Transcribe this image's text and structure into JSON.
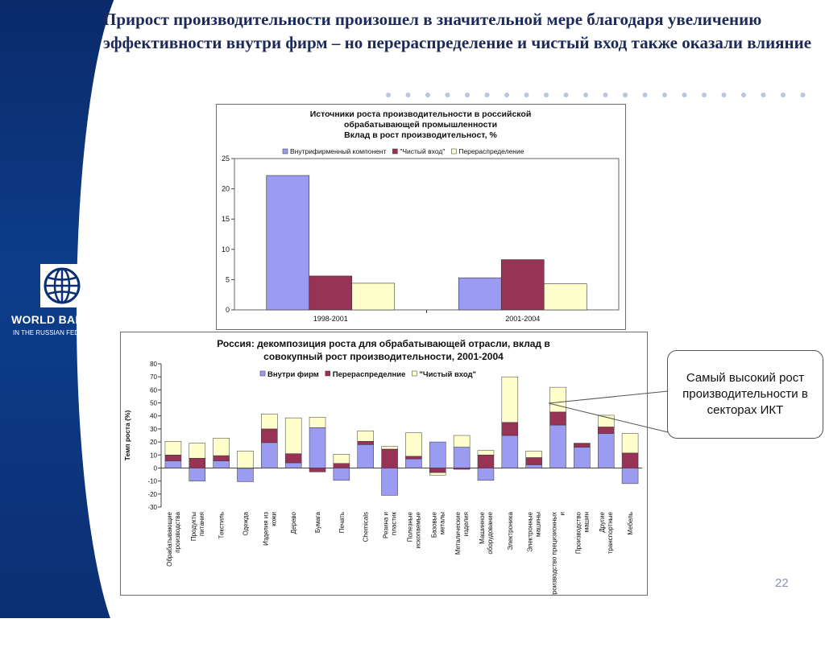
{
  "slide": {
    "headline": "Прирост производительности произошел в значительной мере благодаря увеличению эффективности внутри фирм – но перераспределение и чистый вход также оказали влияние",
    "page_number": "22"
  },
  "logo": {
    "name": "WORLD BANK",
    "subtitle": "IN THE RUSSIAN FEDERATION",
    "icon": "globe-icon"
  },
  "callout": {
    "text": "Самый высокий рост производительности в секторах ИКТ"
  },
  "colors": {
    "within": "#9b9bf2",
    "net_entry_top": "#993355",
    "realloc_top": "#ffffcc",
    "sidebar": "#0d3d8a",
    "headline": "#1b2a5a"
  },
  "chart_data": [
    {
      "type": "bar",
      "title_lines": [
        "Источники роста производительности в российской",
        "обрабатывающей промышленности",
        "Вклад в рост производительност, %"
      ],
      "categories": [
        "1998-2001",
        "2001-2004"
      ],
      "series": [
        {
          "name": "Внутрифирменный компонент",
          "color": "#9b9bf2",
          "values": [
            22.2,
            5.3
          ]
        },
        {
          "name": "\"Чистый вход\"",
          "color": "#993355",
          "values": [
            5.6,
            8.3
          ]
        },
        {
          "name": "Перераспределение",
          "color": "#ffffcc",
          "values": [
            4.4,
            4.3
          ]
        }
      ],
      "ylim": [
        0,
        25
      ],
      "yticks": [
        0,
        5,
        10,
        15,
        20,
        25
      ],
      "grid": false,
      "legend": "top"
    },
    {
      "type": "bar",
      "stacked": true,
      "title_lines": [
        "Россия: декомпозиция роста для обрабатывающей отрасли, вклад в",
        "совокупный рост производительности,  2001-2004"
      ],
      "ylabel": "Темп роста  (%)",
      "ylim": [
        -30,
        80
      ],
      "yticks": [
        -30,
        -20,
        -10,
        0,
        10,
        20,
        30,
        40,
        50,
        60,
        70,
        80
      ],
      "grid": false,
      "legend": "top",
      "categories": [
        "Обрабатывающие производства",
        "Продукты питания",
        "Текстиль",
        "Одежда",
        "Изделия из кожи",
        "Дерево",
        "Бумага",
        "Печать",
        "Chemicals",
        "Резина и пластик",
        "Полезные ископаемые",
        "Базовые металы",
        "Металические изделия",
        "Машинное оборудование",
        "Электроника",
        "Электронные машины",
        "Производство прецизионных и",
        "Производство машин",
        "Другие транспортные",
        "Мебель"
      ],
      "series": [
        {
          "name": "Внутри фирм",
          "color": "#9b9bf2",
          "values": [
            5.5,
            -10,
            5.5,
            -10.5,
            19.5,
            4,
            31,
            -9.5,
            18,
            -21,
            7,
            20,
            16,
            -9.5,
            25,
            2.5,
            33,
            16,
            26.5,
            -12
          ]
        },
        {
          "name": "Перераспределние",
          "color": "#993355",
          "values": [
            4.5,
            7.5,
            4,
            0,
            10.5,
            7,
            -3,
            3.5,
            2.5,
            14.5,
            2,
            -3.5,
            -1,
            10,
            10,
            5.5,
            10,
            3,
            5,
            11.5
          ]
        },
        {
          "name": "\"Чистый вход\"",
          "color": "#ffffcc",
          "values": [
            10.5,
            11.5,
            13.5,
            13,
            11.5,
            27.5,
            8,
            7,
            8,
            2,
            18,
            -2,
            9,
            3.5,
            35,
            5,
            19,
            0,
            9,
            15
          ]
        }
      ]
    }
  ]
}
